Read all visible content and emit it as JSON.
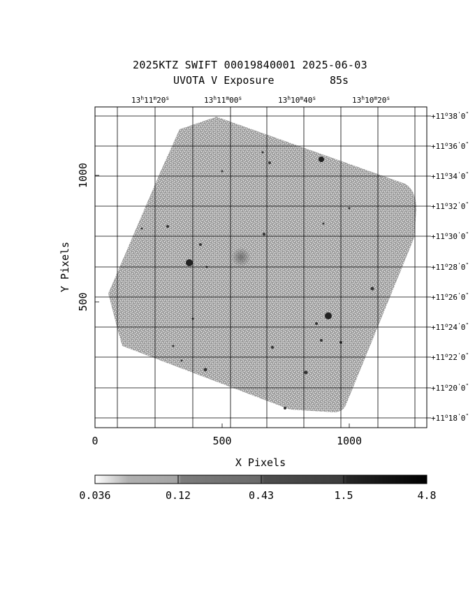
{
  "title": {
    "line1": "2025KTZ SWIFT 00019840001 2025-06-03",
    "line2_left": "UVOTA V Exposure",
    "line2_right": "85s"
  },
  "axes": {
    "xlabel": "X Pixels",
    "ylabel": "Y Pixels",
    "x_ticks": [
      "0",
      "500",
      "1000"
    ],
    "y_ticks": [
      "500",
      "1000"
    ],
    "ra_ticks": [
      {
        "h": "13",
        "m": "11",
        "s": "20"
      },
      {
        "h": "13",
        "m": "11",
        "s": "00"
      },
      {
        "h": "13",
        "m": "10",
        "s": "40"
      },
      {
        "h": "13",
        "m": "10",
        "s": "20"
      }
    ],
    "dec_ticks": [
      {
        "d": "+11",
        "m": "38",
        "s": "0"
      },
      {
        "d": "+11",
        "m": "36",
        "s": "0"
      },
      {
        "d": "+11",
        "m": "34",
        "s": "0"
      },
      {
        "d": "+11",
        "m": "32",
        "s": "0"
      },
      {
        "d": "+11",
        "m": "30",
        "s": "0"
      },
      {
        "d": "+11",
        "m": "28",
        "s": "0"
      },
      {
        "d": "+11",
        "m": "26",
        "s": "0"
      },
      {
        "d": "+11",
        "m": "24",
        "s": "0"
      },
      {
        "d": "+11",
        "m": "22",
        "s": "0"
      },
      {
        "d": "+11",
        "m": "20",
        "s": "0"
      },
      {
        "d": "+11",
        "m": "18",
        "s": "0"
      }
    ]
  },
  "colorbar": {
    "labels": [
      "0.036",
      "0.12",
      "0.43",
      "1.5",
      "4.8"
    ],
    "colormap": "grayscale-inverted"
  },
  "image": {
    "description_kind": "sky-exposure-grayscale",
    "background_gray": "#9a9a9a",
    "frame_color": "#000000"
  }
}
